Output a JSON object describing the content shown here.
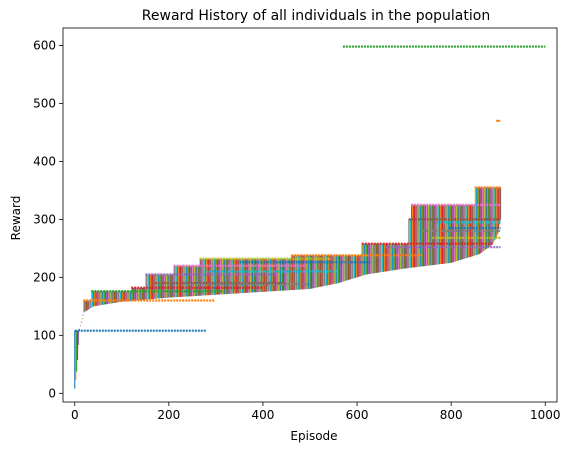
{
  "chart_data": {
    "type": "line",
    "title": "Reward History of all individuals in the population",
    "xlabel": "Episode",
    "ylabel": "Reward",
    "xlim": [
      -25,
      1025
    ],
    "ylim": [
      -15,
      630
    ],
    "xticks": [
      0,
      200,
      400,
      600,
      800,
      1000
    ],
    "yticks": [
      0,
      100,
      200,
      300,
      400,
      500,
      600
    ],
    "grid": false,
    "legend": "none",
    "palette": [
      "#1f77b4",
      "#ff7f0e",
      "#2ca02c",
      "#d62728",
      "#9467bd",
      "#8c564b",
      "#e377c2",
      "#7f7f7f",
      "#bcbd22",
      "#17becf"
    ],
    "individuals": 910,
    "curve_points": [
      {
        "x": 0,
        "y": 8
      },
      {
        "x": 5,
        "y": 45
      },
      {
        "x": 10,
        "y": 110
      },
      {
        "x": 20,
        "y": 140
      },
      {
        "x": 40,
        "y": 150
      },
      {
        "x": 100,
        "y": 158
      },
      {
        "x": 200,
        "y": 165
      },
      {
        "x": 300,
        "y": 170
      },
      {
        "x": 400,
        "y": 175
      },
      {
        "x": 500,
        "y": 180
      },
      {
        "x": 560,
        "y": 190
      },
      {
        "x": 620,
        "y": 205
      },
      {
        "x": 700,
        "y": 215
      },
      {
        "x": 800,
        "y": 225
      },
      {
        "x": 860,
        "y": 240
      },
      {
        "x": 885,
        "y": 255
      },
      {
        "x": 898,
        "y": 270
      },
      {
        "x": 905,
        "y": 300
      }
    ],
    "plateaus": [
      {
        "x_start": 0,
        "y": 108
      },
      {
        "x_start": 18,
        "y": 160
      },
      {
        "x_start": 35,
        "y": 176
      },
      {
        "x_start": 120,
        "y": 182
      },
      {
        "x_start": 170,
        "y": 190
      },
      {
        "x_start": 230,
        "y": 188
      },
      {
        "x_start": 150,
        "y": 205
      },
      {
        "x_start": 280,
        "y": 210
      },
      {
        "x_start": 210,
        "y": 220
      },
      {
        "x_start": 265,
        "y": 232
      },
      {
        "x_start": 350,
        "y": 226
      },
      {
        "x_start": 460,
        "y": 238
      },
      {
        "x_start": 610,
        "y": 258
      },
      {
        "x_start": 660,
        "y": 252
      },
      {
        "x_start": 760,
        "y": 268
      },
      {
        "x_start": 740,
        "y": 280
      },
      {
        "x_start": 795,
        "y": 285
      },
      {
        "x_start": 710,
        "y": 300
      },
      {
        "x_start": 770,
        "y": 295
      },
      {
        "x_start": 715,
        "y": 325
      },
      {
        "x_start": 850,
        "y": 355
      },
      {
        "x_start": 570,
        "y": 598
      }
    ],
    "outliers": [
      {
        "x": 900,
        "y": 470
      }
    ]
  }
}
